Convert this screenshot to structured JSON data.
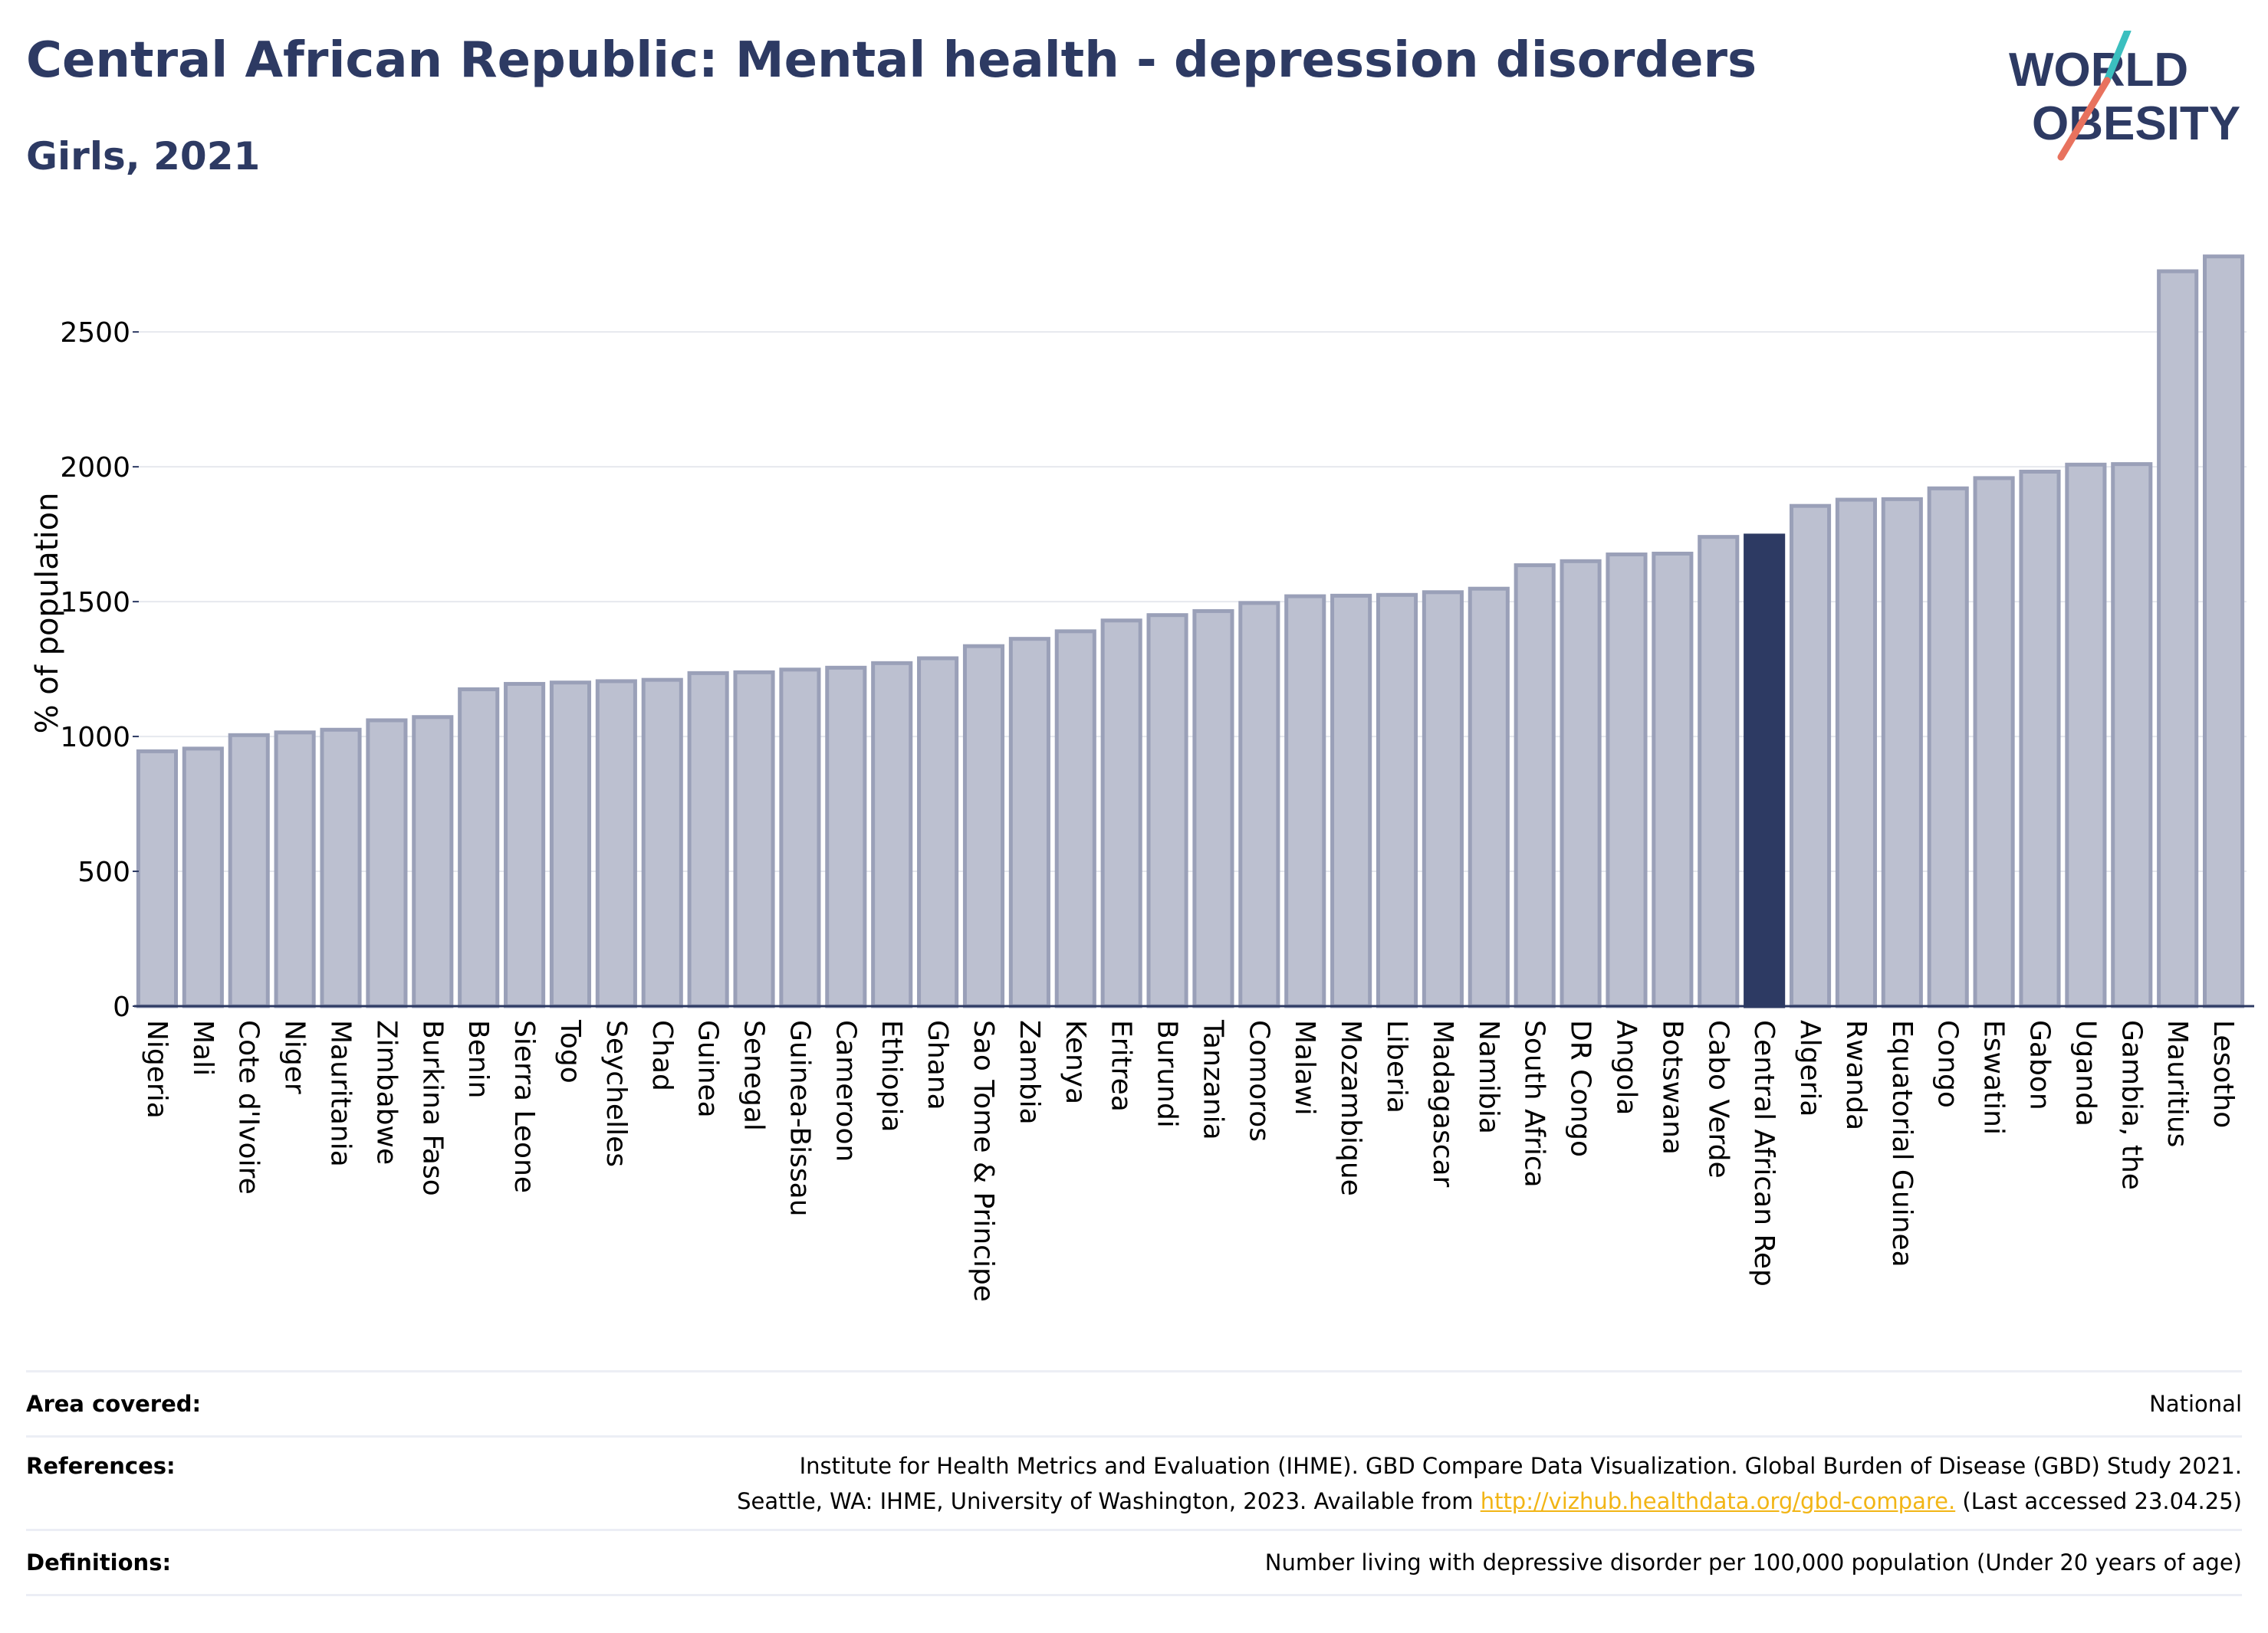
{
  "header": {
    "title": "Central African Republic: Mental health - depression disorders",
    "subtitle": "Girls, 2021"
  },
  "logo": {
    "line1": "WORLD",
    "line2": "OBESITY"
  },
  "colors": {
    "title": "#2d3a63",
    "bar_fill": "#bcc0d0",
    "bar_stroke": "#9aa0b8",
    "highlight": "#2d3a63",
    "grid": "#e6e8ee"
  },
  "chart_data": {
    "type": "bar",
    "title": "Central African Republic: Mental health - depression disorders",
    "subtitle": "Girls, 2021",
    "ylabel": "% of population",
    "xlabel": "",
    "ylim": [
      0,
      2850
    ],
    "yticks": [
      0,
      500,
      1000,
      1500,
      2000,
      2500
    ],
    "grid": true,
    "highlight": "Central African Rep",
    "categories": [
      "Nigeria",
      "Mali",
      "Cote d'Ivoire",
      "Niger",
      "Mauritania",
      "Zimbabwe",
      "Burkina Faso",
      "Benin",
      "Sierra Leone",
      "Togo",
      "Seychelles",
      "Chad",
      "Guinea",
      "Senegal",
      "Guinea-Bissau",
      "Cameroon",
      "Ethiopia",
      "Ghana",
      "Sao Tome & Principe",
      "Zambia",
      "Kenya",
      "Eritrea",
      "Burundi",
      "Tanzania",
      "Comoros",
      "Malawi",
      "Mozambique",
      "Liberia",
      "Madagascar",
      "Namibia",
      "South Africa",
      "DR Congo",
      "Angola",
      "Botswana",
      "Cabo Verde",
      "Central African Rep",
      "Algeria",
      "Rwanda",
      "Equatorial Guinea",
      "Congo",
      "Eswatini",
      "Gabon",
      "Uganda",
      "Gambia, the",
      "Mauritius",
      "Lesotho"
    ],
    "values": [
      945,
      955,
      1005,
      1015,
      1025,
      1060,
      1072,
      1175,
      1195,
      1200,
      1205,
      1210,
      1235,
      1238,
      1248,
      1255,
      1272,
      1290,
      1335,
      1362,
      1390,
      1430,
      1450,
      1465,
      1495,
      1520,
      1522,
      1525,
      1535,
      1548,
      1635,
      1650,
      1675,
      1678,
      1740,
      1745,
      1855,
      1878,
      1880,
      1920,
      1958,
      1982,
      2008,
      2010,
      2725,
      2780
    ]
  },
  "footer": {
    "area_label": "Area covered:",
    "area_value": "National",
    "references_label": "References:",
    "references_line1": "Institute for Health Metrics and Evaluation (IHME). GBD Compare Data Visualization. Global Burden of Disease (GBD) Study 2021.",
    "references_line2_pre": "Seattle, WA: IHME, University of Washington, 2023. Available from ",
    "references_link": "http://vizhub.healthdata.org/gbd-compare.",
    "references_line2_post": " (Last accessed 23.04.25)",
    "definitions_label": "Definitions:",
    "definitions_value": "Number living with depressive disorder per 100,000 population (Under 20 years of age)"
  }
}
